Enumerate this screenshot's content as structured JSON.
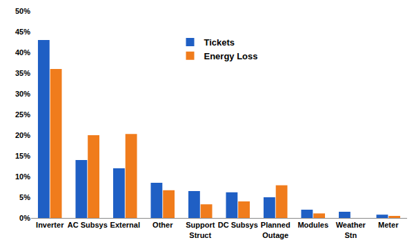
{
  "chart_data": {
    "type": "bar",
    "categories": [
      "Inverter",
      "AC Subsys",
      "External",
      "Other",
      "Support Struct",
      "DC Subsys",
      "Planned Outage",
      "Modules",
      "Weather Stn",
      "Meter"
    ],
    "series": [
      {
        "name": "Tickets",
        "color": "#1f5fc4",
        "values": [
          43,
          14,
          12,
          8.5,
          6.5,
          6.2,
          5,
          2,
          1.5,
          0.8
        ]
      },
      {
        "name": "Energy Loss",
        "color": "#f07c1c",
        "values": [
          36,
          20,
          20.3,
          6.7,
          3.3,
          4,
          7.9,
          1.1,
          0,
          0.5
        ]
      }
    ],
    "ylim": [
      0,
      50
    ],
    "yticks": [
      {
        "value": 0,
        "label": "0%"
      },
      {
        "value": 5,
        "label": "5%"
      },
      {
        "value": 10,
        "label": "10%"
      },
      {
        "value": 15,
        "label": "15%"
      },
      {
        "value": 20,
        "label": "20%"
      },
      {
        "value": 25,
        "label": "25%"
      },
      {
        "value": 30,
        "label": "30%"
      },
      {
        "value": 35,
        "label": "35%"
      },
      {
        "value": 40,
        "label": "40%"
      },
      {
        "value": 45,
        "label": "45%"
      },
      {
        "value": 50,
        "label": "50%"
      }
    ],
    "grid": false,
    "legend": "upper center"
  }
}
